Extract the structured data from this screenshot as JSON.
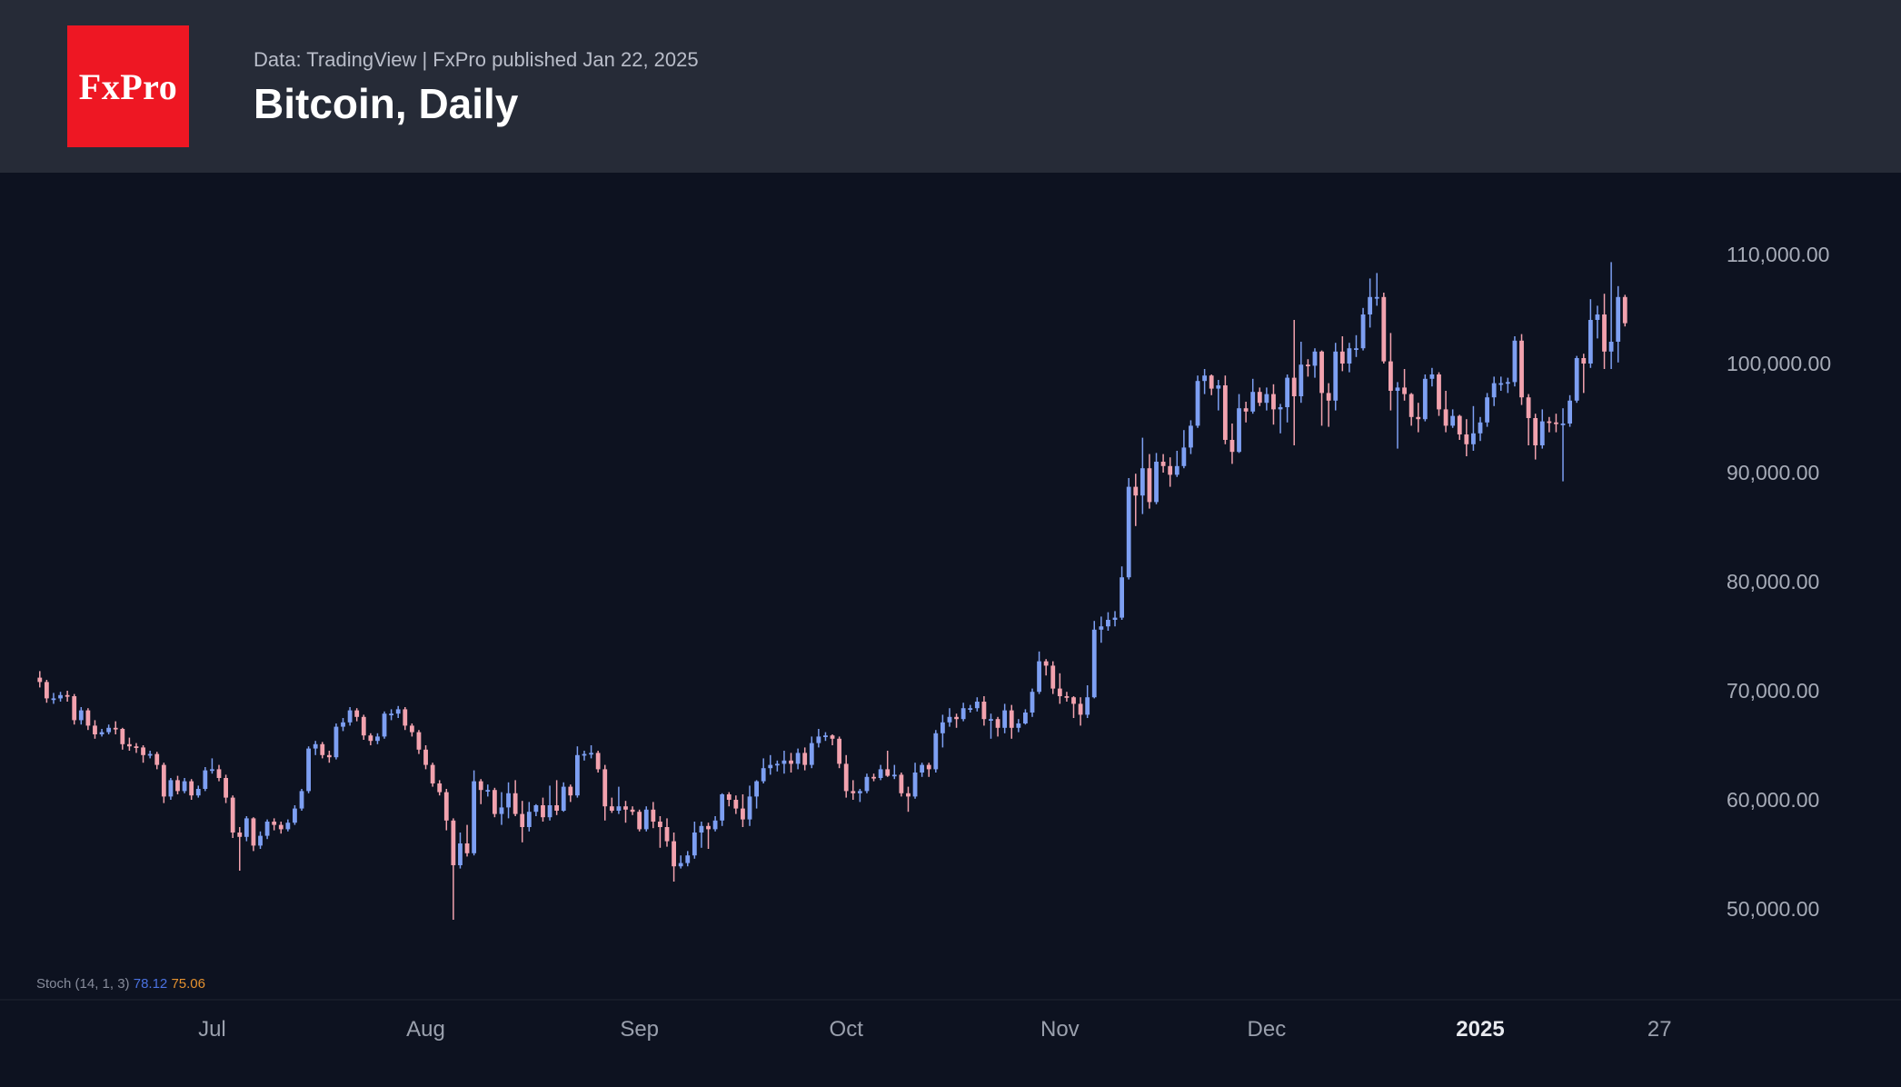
{
  "header": {
    "logo_text": "FxPro",
    "source_line": "Data: TradingView | FxPro published Jan 22, 2025",
    "title": "Bitcoin, Daily"
  },
  "colors": {
    "header_bg": "#262b37",
    "chart_bg": "#0d1220",
    "logo_bg": "#ee1723",
    "up": "#7d9ff2",
    "down": "#f2a2ae",
    "axis_text": "#a6abb7",
    "axis_text_dim": "#9aa0ad"
  },
  "chart_data": {
    "type": "candlestick",
    "title": "Bitcoin, Daily",
    "subtitle": "Data: TradingView | FxPro published Jan 22, 2025",
    "price_unit": "USD",
    "values_in": "thousands of USD",
    "ylim_usd": [
      46000,
      117000
    ],
    "grid": false,
    "y_ticks": [
      {
        "value": 110000,
        "label": "110,000.00"
      },
      {
        "value": 100000,
        "label": "100,000.00"
      },
      {
        "value": 90000,
        "label": "90,000.00"
      },
      {
        "value": 80000,
        "label": "80,000.00"
      },
      {
        "value": 70000,
        "label": "70,000.00"
      },
      {
        "value": 60000,
        "label": "60,000.00"
      },
      {
        "value": 50000,
        "label": "50,000.00"
      }
    ],
    "x_ticks": [
      {
        "index": 25,
        "label": "Jul"
      },
      {
        "index": 56,
        "label": "Aug"
      },
      {
        "index": 87,
        "label": "Sep"
      },
      {
        "index": 117,
        "label": "Oct"
      },
      {
        "index": 148,
        "label": "Nov"
      },
      {
        "index": 178,
        "label": "Dec"
      },
      {
        "index": 209,
        "label": "2025",
        "emphasis": true
      },
      {
        "index": 235,
        "label": "27"
      }
    ],
    "candles_ohlc_thousands": [
      [
        71.2,
        71.8,
        70.3,
        70.8
      ],
      [
        70.8,
        71.0,
        68.9,
        69.3
      ],
      [
        69.3,
        69.8,
        68.8,
        69.3
      ],
      [
        69.3,
        69.9,
        69.0,
        69.6
      ],
      [
        69.6,
        70.0,
        69.0,
        69.5
      ],
      [
        69.5,
        69.7,
        66.9,
        67.3
      ],
      [
        67.3,
        68.5,
        66.9,
        68.2
      ],
      [
        68.2,
        68.4,
        66.4,
        66.8
      ],
      [
        66.8,
        67.3,
        65.6,
        66.0
      ],
      [
        66.0,
        66.5,
        65.8,
        66.2
      ],
      [
        66.2,
        66.9,
        66.0,
        66.6
      ],
      [
        66.6,
        67.2,
        66.0,
        66.5
      ],
      [
        66.5,
        66.6,
        64.6,
        65.1
      ],
      [
        65.1,
        65.7,
        64.5,
        64.9
      ],
      [
        64.9,
        65.2,
        64.3,
        64.8
      ],
      [
        64.8,
        65.0,
        63.4,
        64.1
      ],
      [
        64.1,
        64.5,
        63.8,
        64.2
      ],
      [
        64.2,
        64.4,
        62.8,
        63.2
      ],
      [
        63.2,
        63.4,
        59.7,
        60.3
      ],
      [
        60.3,
        62.0,
        60.0,
        61.8
      ],
      [
        61.8,
        62.2,
        60.5,
        60.8
      ],
      [
        60.8,
        62.0,
        60.6,
        61.7
      ],
      [
        61.7,
        61.9,
        60.0,
        60.4
      ],
      [
        60.4,
        61.3,
        60.2,
        61.0
      ],
      [
        61.0,
        63.0,
        60.8,
        62.7
      ],
      [
        62.7,
        63.8,
        62.4,
        62.8
      ],
      [
        62.8,
        63.2,
        61.7,
        62.0
      ],
      [
        62.0,
        62.3,
        59.7,
        60.2
      ],
      [
        60.2,
        60.4,
        56.5,
        57.0
      ],
      [
        57.0,
        57.5,
        53.5,
        56.6
      ],
      [
        56.6,
        58.5,
        56.2,
        58.3
      ],
      [
        58.3,
        58.4,
        55.3,
        55.8
      ],
      [
        55.8,
        57.1,
        55.5,
        56.7
      ],
      [
        56.7,
        58.2,
        56.4,
        58.0
      ],
      [
        58.0,
        58.3,
        57.2,
        57.7
      ],
      [
        57.7,
        58.0,
        56.9,
        57.3
      ],
      [
        57.3,
        58.2,
        57.1,
        57.9
      ],
      [
        57.9,
        59.5,
        57.7,
        59.2
      ],
      [
        59.2,
        61.0,
        59.0,
        60.8
      ],
      [
        60.8,
        64.9,
        60.6,
        64.7
      ],
      [
        64.7,
        65.4,
        64.1,
        65.1
      ],
      [
        65.1,
        65.3,
        63.8,
        64.1
      ],
      [
        64.1,
        64.5,
        63.4,
        63.9
      ],
      [
        63.9,
        67.0,
        63.7,
        66.7
      ],
      [
        66.7,
        67.5,
        66.3,
        67.1
      ],
      [
        67.1,
        68.5,
        66.8,
        68.2
      ],
      [
        68.2,
        68.4,
        67.2,
        67.6
      ],
      [
        67.6,
        67.8,
        65.5,
        65.9
      ],
      [
        65.9,
        66.1,
        65.0,
        65.4
      ],
      [
        65.4,
        66.1,
        65.1,
        65.8
      ],
      [
        65.8,
        68.1,
        65.6,
        67.9
      ],
      [
        67.9,
        68.3,
        67.3,
        67.9
      ],
      [
        67.9,
        68.6,
        67.5,
        68.3
      ],
      [
        68.3,
        68.5,
        66.4,
        66.8
      ],
      [
        66.8,
        67.0,
        65.8,
        66.2
      ],
      [
        66.2,
        66.4,
        64.2,
        64.6
      ],
      [
        64.6,
        65.0,
        62.8,
        63.2
      ],
      [
        63.2,
        63.4,
        61.2,
        61.5
      ],
      [
        61.5,
        61.8,
        60.4,
        60.7
      ],
      [
        60.7,
        61.0,
        57.2,
        58.1
      ],
      [
        58.1,
        58.3,
        49.0,
        54.0
      ],
      [
        54.0,
        57.0,
        53.7,
        56.0
      ],
      [
        56.0,
        57.7,
        54.8,
        55.1
      ],
      [
        55.1,
        62.7,
        54.9,
        61.7
      ],
      [
        61.7,
        61.9,
        59.6,
        60.9
      ],
      [
        60.9,
        61.4,
        60.3,
        60.9
      ],
      [
        60.9,
        61.1,
        58.4,
        58.7
      ],
      [
        58.7,
        60.7,
        57.7,
        59.3
      ],
      [
        59.3,
        61.6,
        58.3,
        60.6
      ],
      [
        60.6,
        61.8,
        58.5,
        58.7
      ],
      [
        58.7,
        59.9,
        56.1,
        57.5
      ],
      [
        57.5,
        59.8,
        57.1,
        58.9
      ],
      [
        58.9,
        59.6,
        58.5,
        59.5
      ],
      [
        59.5,
        60.2,
        58.0,
        58.4
      ],
      [
        58.4,
        61.3,
        58.1,
        59.5
      ],
      [
        59.5,
        61.8,
        58.6,
        59.0
      ],
      [
        59.0,
        61.6,
        58.9,
        61.2
      ],
      [
        61.2,
        61.4,
        59.8,
        60.4
      ],
      [
        60.4,
        64.9,
        60.2,
        64.1
      ],
      [
        64.1,
        64.5,
        63.6,
        64.2
      ],
      [
        64.2,
        65.0,
        63.8,
        64.3
      ],
      [
        64.3,
        64.5,
        62.5,
        62.8
      ],
      [
        62.8,
        63.2,
        58.1,
        59.4
      ],
      [
        59.4,
        60.2,
        58.8,
        59.0
      ],
      [
        59.0,
        61.2,
        58.7,
        59.4
      ],
      [
        59.4,
        59.9,
        57.9,
        59.1
      ],
      [
        59.1,
        59.4,
        58.6,
        58.9
      ],
      [
        58.9,
        59.1,
        57.1,
        57.3
      ],
      [
        57.3,
        59.4,
        57.1,
        59.1
      ],
      [
        59.1,
        59.8,
        57.4,
        58.0
      ],
      [
        58.0,
        58.5,
        55.6,
        57.5
      ],
      [
        57.5,
        58.3,
        55.7,
        56.2
      ],
      [
        56.2,
        57.0,
        52.5,
        53.9
      ],
      [
        53.9,
        54.9,
        53.7,
        54.2
      ],
      [
        54.2,
        55.3,
        53.9,
        54.9
      ],
      [
        54.9,
        58.0,
        54.6,
        57.0
      ],
      [
        57.0,
        58.0,
        55.6,
        57.6
      ],
      [
        57.6,
        57.9,
        55.5,
        57.3
      ],
      [
        57.3,
        58.5,
        57.1,
        58.1
      ],
      [
        58.1,
        60.6,
        57.6,
        60.5
      ],
      [
        60.5,
        60.7,
        59.4,
        60.0
      ],
      [
        60.0,
        60.4,
        58.7,
        59.2
      ],
      [
        59.2,
        60.5,
        57.5,
        58.2
      ],
      [
        58.2,
        61.3,
        57.6,
        60.3
      ],
      [
        60.3,
        61.8,
        59.2,
        61.7
      ],
      [
        61.7,
        63.8,
        61.5,
        62.9
      ],
      [
        62.9,
        64.1,
        62.3,
        63.2
      ],
      [
        63.2,
        63.6,
        62.6,
        63.3
      ],
      [
        63.3,
        64.5,
        62.4,
        63.6
      ],
      [
        63.6,
        64.3,
        62.5,
        63.3
      ],
      [
        63.3,
        64.7,
        62.8,
        64.3
      ],
      [
        64.3,
        64.8,
        62.7,
        63.2
      ],
      [
        63.2,
        65.8,
        62.9,
        65.2
      ],
      [
        65.2,
        66.5,
        64.8,
        65.8
      ],
      [
        65.8,
        66.2,
        65.4,
        65.9
      ],
      [
        65.9,
        66.0,
        65.0,
        65.6
      ],
      [
        65.6,
        65.8,
        62.9,
        63.3
      ],
      [
        63.3,
        64.1,
        60.2,
        60.8
      ],
      [
        60.8,
        61.8,
        60.0,
        60.6
      ],
      [
        60.6,
        61.0,
        59.8,
        60.8
      ],
      [
        60.8,
        62.4,
        60.6,
        62.1
      ],
      [
        62.1,
        62.4,
        61.7,
        62.0
      ],
      [
        62.0,
        63.2,
        61.8,
        62.8
      ],
      [
        62.8,
        64.5,
        62.1,
        62.2
      ],
      [
        62.2,
        63.2,
        61.9,
        62.3
      ],
      [
        62.3,
        62.5,
        60.3,
        60.6
      ],
      [
        60.6,
        61.2,
        58.9,
        60.3
      ],
      [
        60.3,
        63.4,
        60.1,
        62.5
      ],
      [
        62.5,
        63.4,
        62.1,
        63.2
      ],
      [
        63.2,
        63.4,
        62.1,
        62.8
      ],
      [
        62.8,
        66.4,
        62.5,
        66.1
      ],
      [
        66.1,
        67.8,
        64.8,
        67.1
      ],
      [
        67.1,
        68.4,
        66.7,
        67.6
      ],
      [
        67.6,
        67.9,
        66.6,
        67.4
      ],
      [
        67.4,
        68.9,
        67.2,
        68.4
      ],
      [
        68.4,
        68.7,
        68.0,
        68.4
      ],
      [
        68.4,
        69.4,
        68.1,
        69.0
      ],
      [
        69.0,
        69.5,
        66.8,
        67.4
      ],
      [
        67.4,
        67.9,
        65.6,
        67.4
      ],
      [
        67.4,
        67.6,
        65.8,
        66.6
      ],
      [
        66.6,
        68.8,
        66.1,
        68.2
      ],
      [
        68.2,
        68.7,
        65.6,
        66.6
      ],
      [
        66.6,
        67.4,
        66.2,
        67.0
      ],
      [
        67.0,
        68.3,
        66.9,
        68.0
      ],
      [
        68.0,
        70.2,
        67.6,
        69.9
      ],
      [
        69.9,
        73.6,
        69.7,
        72.7
      ],
      [
        72.7,
        72.9,
        71.4,
        72.3
      ],
      [
        72.3,
        72.7,
        69.7,
        70.2
      ],
      [
        70.2,
        71.6,
        68.8,
        69.5
      ],
      [
        69.5,
        69.9,
        69.0,
        69.4
      ],
      [
        69.4,
        69.5,
        67.5,
        68.8
      ],
      [
        68.8,
        69.4,
        66.8,
        67.8
      ],
      [
        67.8,
        70.5,
        67.5,
        69.4
      ],
      [
        69.4,
        76.4,
        69.3,
        75.6
      ],
      [
        75.6,
        76.8,
        74.4,
        75.9
      ],
      [
        75.9,
        77.2,
        75.5,
        76.5
      ],
      [
        76.5,
        77.3,
        75.9,
        76.7
      ],
      [
        76.7,
        81.4,
        76.5,
        80.4
      ],
      [
        80.4,
        89.5,
        80.2,
        88.7
      ],
      [
        88.7,
        89.9,
        85.1,
        87.9
      ],
      [
        87.9,
        93.2,
        86.2,
        90.4
      ],
      [
        90.4,
        91.7,
        86.7,
        87.3
      ],
      [
        87.3,
        91.8,
        87.1,
        91.0
      ],
      [
        91.0,
        91.7,
        90.0,
        90.6
      ],
      [
        90.6,
        91.4,
        88.7,
        89.8
      ],
      [
        89.8,
        92.0,
        89.6,
        90.6
      ],
      [
        90.6,
        93.9,
        90.4,
        92.3
      ],
      [
        92.3,
        94.8,
        91.7,
        94.3
      ],
      [
        94.3,
        98.9,
        94.1,
        98.4
      ],
      [
        98.4,
        99.5,
        97.2,
        98.9
      ],
      [
        98.9,
        99.0,
        97.1,
        97.7
      ],
      [
        97.7,
        98.5,
        95.7,
        98.0
      ],
      [
        98.0,
        98.9,
        92.6,
        93.0
      ],
      [
        93.0,
        94.5,
        90.8,
        91.9
      ],
      [
        91.9,
        97.2,
        91.8,
        95.9
      ],
      [
        95.9,
        96.5,
        94.6,
        95.6
      ],
      [
        95.6,
        98.6,
        95.4,
        97.4
      ],
      [
        97.4,
        97.8,
        96.1,
        96.4
      ],
      [
        96.4,
        97.8,
        95.7,
        97.2
      ],
      [
        97.2,
        98.1,
        94.4,
        95.8
      ],
      [
        95.8,
        96.3,
        93.6,
        96.0
      ],
      [
        96.0,
        99.0,
        94.6,
        98.7
      ],
      [
        98.7,
        104.0,
        92.5,
        97.0
      ],
      [
        97.0,
        102.0,
        96.4,
        99.9
      ],
      [
        99.9,
        100.4,
        98.8,
        99.8
      ],
      [
        99.8,
        101.4,
        98.7,
        101.1
      ],
      [
        101.1,
        101.2,
        94.3,
        97.3
      ],
      [
        97.3,
        98.2,
        94.2,
        96.6
      ],
      [
        96.6,
        101.9,
        95.7,
        101.1
      ],
      [
        101.1,
        102.5,
        99.3,
        100.0
      ],
      [
        100.0,
        101.9,
        99.2,
        101.4
      ],
      [
        101.4,
        102.6,
        100.6,
        101.4
      ],
      [
        101.4,
        105.1,
        101.2,
        104.5
      ],
      [
        104.5,
        107.8,
        103.3,
        106.1
      ],
      [
        106.1,
        108.3,
        105.3,
        106.1
      ],
      [
        106.1,
        106.5,
        100.0,
        100.2
      ],
      [
        100.2,
        102.8,
        95.7,
        97.5
      ],
      [
        97.5,
        98.3,
        92.2,
        97.8
      ],
      [
        97.8,
        99.5,
        96.6,
        97.2
      ],
      [
        97.2,
        97.3,
        94.3,
        95.1
      ],
      [
        95.1,
        96.4,
        93.7,
        94.9
      ],
      [
        94.9,
        99.0,
        94.7,
        98.6
      ],
      [
        98.6,
        99.6,
        97.9,
        99.0
      ],
      [
        99.0,
        99.2,
        95.2,
        95.8
      ],
      [
        95.8,
        97.5,
        93.7,
        94.3
      ],
      [
        94.3,
        95.8,
        94.1,
        95.2
      ],
      [
        95.2,
        95.3,
        93.0,
        93.5
      ],
      [
        93.5,
        94.9,
        91.5,
        92.6
      ],
      [
        92.6,
        96.1,
        92.0,
        93.6
      ],
      [
        93.6,
        95.1,
        92.9,
        94.6
      ],
      [
        94.6,
        97.3,
        94.2,
        96.9
      ],
      [
        96.9,
        98.8,
        96.1,
        98.2
      ],
      [
        98.2,
        98.8,
        97.5,
        98.2
      ],
      [
        98.2,
        98.7,
        97.3,
        98.3
      ],
      [
        98.3,
        102.5,
        97.9,
        102.1
      ],
      [
        102.1,
        102.7,
        96.2,
        96.9
      ],
      [
        96.9,
        97.2,
        92.5,
        95.0
      ],
      [
        95.0,
        95.4,
        91.2,
        92.5
      ],
      [
        92.5,
        95.8,
        92.2,
        94.7
      ],
      [
        94.7,
        95.1,
        93.7,
        94.6
      ],
      [
        94.6,
        95.4,
        93.7,
        94.5
      ],
      [
        94.5,
        95.9,
        89.2,
        94.5
      ],
      [
        94.5,
        97.1,
        94.2,
        96.6
      ],
      [
        96.6,
        100.7,
        96.4,
        100.5
      ],
      [
        100.5,
        100.9,
        97.3,
        100.0
      ],
      [
        100.0,
        105.9,
        99.6,
        104.0
      ],
      [
        104.0,
        105.3,
        102.3,
        104.5
      ],
      [
        104.5,
        106.4,
        99.5,
        101.1
      ],
      [
        101.1,
        109.3,
        99.5,
        102.0
      ],
      [
        102.0,
        107.1,
        100.1,
        106.1
      ],
      [
        106.1,
        106.3,
        103.4,
        103.7
      ]
    ],
    "indicator": {
      "name": "Stoch (14, 1, 3)",
      "k_value": "78.12",
      "d_value": "75.06",
      "k_color": "#4a72e0",
      "d_color": "#e5912f"
    }
  }
}
